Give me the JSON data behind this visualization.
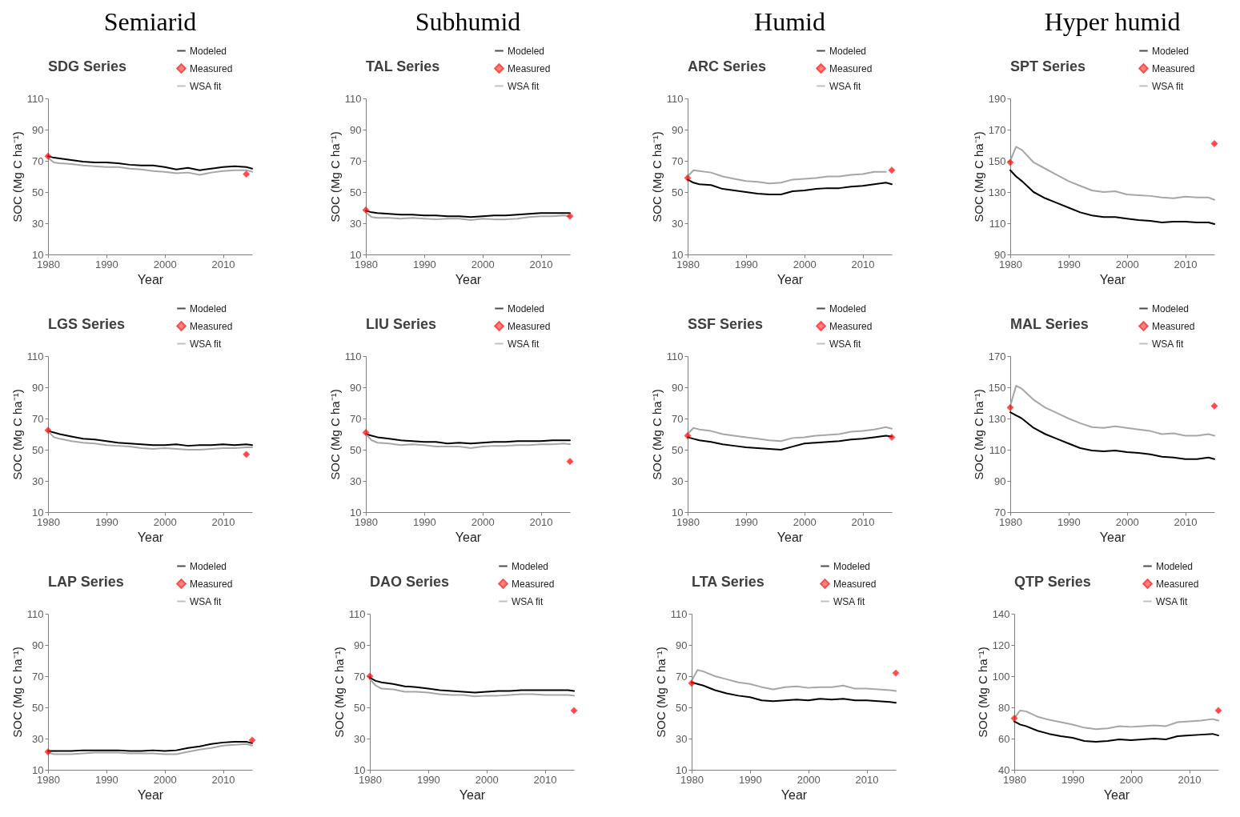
{
  "chart_data": [
    {
      "type": "line",
      "title": "SDG Series",
      "annotations": [
        "Semiarid"
      ],
      "xlabel": "Year",
      "ylabel": "SOC  (Mg C ha⁻¹)",
      "x": [
        1980,
        1981,
        1982,
        1984,
        1986,
        1988,
        1990,
        1992,
        1994,
        1996,
        1998,
        2000,
        2002,
        2004,
        2006,
        2008,
        2010,
        2012,
        2014,
        2015
      ],
      "xlim": [
        1980,
        2015
      ],
      "xticks": [
        1980,
        1990,
        2000,
        2010
      ],
      "ylim": [
        10,
        110
      ],
      "yticks": [
        10,
        30,
        50,
        70,
        90,
        110
      ],
      "grid": false,
      "legend": "top right",
      "series": [
        {
          "name": "Modeled",
          "color": "#000000",
          "values": [
            73,
            72,
            71.5,
            70.5,
            69.5,
            69,
            69,
            68.5,
            67.5,
            67,
            67,
            66,
            64.5,
            65.5,
            64,
            65,
            66,
            66.5,
            66,
            65
          ]
        },
        {
          "name": "Measured",
          "type": "scatter",
          "marker": "diamond",
          "color": "#ff0000",
          "x": [
            1980,
            2014
          ],
          "values": [
            73,
            61.5
          ]
        },
        {
          "name": "WSA fit",
          "color": "#a6a6a6",
          "values": [
            72,
            69,
            68.5,
            68,
            67,
            66.5,
            66,
            66,
            65,
            64.5,
            63.5,
            63,
            62,
            62.5,
            61,
            62.5,
            63.5,
            64,
            64,
            63
          ]
        }
      ]
    },
    {
      "type": "line",
      "title": "TAL Series",
      "annotations": [
        "Subhumid"
      ],
      "xlabel": "Year",
      "ylabel": "SOC  (Mg C ha⁻¹)",
      "x": [
        1980,
        1981,
        1982,
        1984,
        1986,
        1988,
        1990,
        1992,
        1994,
        1996,
        1998,
        2000,
        2002,
        2004,
        2006,
        2008,
        2010,
        2012,
        2014,
        2015
      ],
      "xlim": [
        1980,
        2015
      ],
      "xticks": [
        1980,
        1990,
        2000,
        2010
      ],
      "ylim": [
        10,
        110
      ],
      "yticks": [
        10,
        30,
        50,
        70,
        90,
        110
      ],
      "grid": false,
      "legend": "top right",
      "series": [
        {
          "name": "Modeled",
          "color": "#000000",
          "values": [
            38,
            37,
            36.5,
            36,
            35.5,
            35.5,
            35,
            35,
            34.5,
            34.5,
            34,
            34.5,
            35,
            35,
            35.5,
            36,
            36.5,
            36.5,
            36.5,
            36.5
          ]
        },
        {
          "name": "Measured",
          "type": "scatter",
          "marker": "diamond",
          "color": "#ff0000",
          "x": [
            1980,
            2015
          ],
          "values": [
            38.5,
            34.5
          ]
        },
        {
          "name": "WSA fit",
          "color": "#a6a6a6",
          "values": [
            37,
            34,
            33.5,
            33.5,
            33,
            33.5,
            33,
            32.5,
            33,
            33,
            32,
            33,
            32.5,
            32.5,
            33,
            34,
            34.5,
            34.5,
            35,
            34.5
          ]
        }
      ]
    },
    {
      "type": "line",
      "title": "ARC Series",
      "annotations": [
        "Humid"
      ],
      "xlabel": "Year",
      "ylabel": "SOC  (Mg C ha⁻¹)",
      "x": [
        1980,
        1981,
        1982,
        1984,
        1986,
        1988,
        1990,
        1992,
        1994,
        1996,
        1998,
        2000,
        2002,
        2004,
        2006,
        2008,
        2010,
        2012,
        2014,
        2015
      ],
      "xlim": [
        1980,
        2015
      ],
      "xticks": [
        1980,
        1990,
        2000,
        2010
      ],
      "ylim": [
        10,
        110
      ],
      "yticks": [
        10,
        30,
        50,
        70,
        90,
        110
      ],
      "grid": false,
      "legend": "top right",
      "series": [
        {
          "name": "Modeled",
          "color": "#000000",
          "values": [
            58,
            56,
            55,
            54.5,
            52,
            51,
            50,
            49,
            48.5,
            48.5,
            50.5,
            51,
            52,
            52.5,
            52.5,
            53.5,
            54,
            55,
            56,
            55
          ]
        },
        {
          "name": "Measured",
          "type": "scatter",
          "marker": "diamond",
          "color": "#ff0000",
          "x": [
            1980,
            2015
          ],
          "values": [
            59,
            64
          ]
        },
        {
          "name": "WSA fit",
          "color": "#a6a6a6",
          "values": [
            60,
            64,
            63.5,
            62.5,
            60,
            58.5,
            57,
            56.5,
            55.5,
            56,
            58,
            58.5,
            59,
            60,
            60,
            61,
            61.5,
            63,
            63,
            null
          ]
        }
      ]
    },
    {
      "type": "line",
      "title": "SPT Series",
      "annotations": [
        "Hyper humid"
      ],
      "xlabel": "Year",
      "ylabel": "SOC  (Mg C ha⁻¹)",
      "x": [
        1980,
        1981,
        1982,
        1984,
        1986,
        1988,
        1990,
        1992,
        1994,
        1996,
        1998,
        2000,
        2002,
        2004,
        2006,
        2008,
        2010,
        2012,
        2014,
        2015
      ],
      "xlim": [
        1980,
        2015
      ],
      "xticks": [
        1980,
        1990,
        2000,
        2010
      ],
      "ylim": [
        90,
        190
      ],
      "yticks": [
        90,
        110,
        130,
        150,
        170,
        190
      ],
      "grid": false,
      "legend": "top right",
      "series": [
        {
          "name": "Modeled",
          "color": "#000000",
          "values": [
            144,
            140,
            137,
            130,
            126,
            123,
            120,
            117,
            115,
            114,
            114,
            113,
            112,
            111.5,
            110.5,
            111,
            111,
            110.5,
            110.5,
            109.5
          ]
        },
        {
          "name": "Measured",
          "type": "scatter",
          "marker": "diamond",
          "color": "#ff0000",
          "x": [
            1980,
            2015
          ],
          "values": [
            149,
            161
          ]
        },
        {
          "name": "WSA fit",
          "color": "#a6a6a6",
          "values": [
            150,
            159,
            157,
            149,
            145,
            141,
            137,
            134,
            131,
            130,
            130.5,
            128.5,
            128,
            127.5,
            126.5,
            126,
            127,
            126.5,
            126.5,
            125
          ]
        }
      ]
    },
    {
      "type": "line",
      "title": "LGS Series",
      "xlabel": "Year",
      "ylabel": "SOC  (Mg C ha⁻¹)",
      "x": [
        1980,
        1981,
        1982,
        1984,
        1986,
        1988,
        1990,
        1992,
        1994,
        1996,
        1998,
        2000,
        2002,
        2004,
        2006,
        2008,
        2010,
        2012,
        2014,
        2015
      ],
      "xlim": [
        1980,
        2015
      ],
      "xticks": [
        1980,
        1990,
        2000,
        2010
      ],
      "ylim": [
        10,
        110
      ],
      "yticks": [
        10,
        30,
        50,
        70,
        90,
        110
      ],
      "grid": false,
      "legend": "top right",
      "series": [
        {
          "name": "Modeled",
          "color": "#000000",
          "values": [
            62,
            61,
            60,
            58.5,
            57,
            56.5,
            55.5,
            54.5,
            54,
            53.5,
            53,
            53,
            53.5,
            52.5,
            53,
            53,
            53.5,
            53,
            53.5,
            53
          ]
        },
        {
          "name": "Measured",
          "type": "scatter",
          "marker": "diamond",
          "color": "#ff0000",
          "x": [
            1980,
            2014
          ],
          "values": [
            62.5,
            47
          ]
        },
        {
          "name": "WSA fit",
          "color": "#a6a6a6",
          "values": [
            62,
            58,
            57,
            55.5,
            54.5,
            54,
            53,
            52.5,
            52,
            51,
            50.5,
            51,
            50.5,
            50,
            50,
            50.5,
            51,
            51,
            51.5,
            51.5
          ]
        }
      ]
    },
    {
      "type": "line",
      "title": "LIU Series",
      "xlabel": "Year",
      "ylabel": "SOC  (Mg C ha⁻¹)",
      "x": [
        1980,
        1981,
        1982,
        1984,
        1986,
        1988,
        1990,
        1992,
        1994,
        1996,
        1998,
        2000,
        2002,
        2004,
        2006,
        2008,
        2010,
        2012,
        2014,
        2015
      ],
      "xlim": [
        1980,
        2015
      ],
      "xticks": [
        1980,
        1990,
        2000,
        2010
      ],
      "ylim": [
        10,
        110
      ],
      "yticks": [
        10,
        30,
        50,
        70,
        90,
        110
      ],
      "grid": false,
      "legend": "top right",
      "series": [
        {
          "name": "Modeled",
          "color": "#000000",
          "values": [
            60,
            59,
            58,
            57,
            56,
            55.5,
            55,
            55,
            54,
            54.5,
            54,
            54.5,
            55,
            55,
            55.5,
            55.5,
            55.5,
            56,
            56,
            56
          ]
        },
        {
          "name": "Measured",
          "type": "scatter",
          "marker": "diamond",
          "color": "#ff0000",
          "x": [
            1980,
            2015
          ],
          "values": [
            61,
            42.5
          ]
        },
        {
          "name": "WSA fit",
          "color": "#a6a6a6",
          "values": [
            60,
            56,
            54.5,
            54,
            53,
            53.5,
            53,
            52,
            52,
            52,
            51,
            52,
            52.5,
            52.5,
            53,
            53,
            53.5,
            53.5,
            54,
            53.5
          ]
        }
      ]
    },
    {
      "type": "line",
      "title": "SSF Series",
      "xlabel": "Year",
      "ylabel": "SOC  (Mg C ha⁻¹)",
      "x": [
        1980,
        1981,
        1982,
        1984,
        1986,
        1988,
        1990,
        1992,
        1994,
        1996,
        1998,
        2000,
        2002,
        2004,
        2006,
        2008,
        2010,
        2012,
        2014,
        2015
      ],
      "xlim": [
        1980,
        2015
      ],
      "xticks": [
        1980,
        1990,
        2000,
        2010
      ],
      "ylim": [
        10,
        110
      ],
      "yticks": [
        10,
        30,
        50,
        70,
        90,
        110
      ],
      "grid": false,
      "legend": "top right",
      "series": [
        {
          "name": "Modeled",
          "color": "#000000",
          "values": [
            58,
            57,
            56,
            55,
            53.5,
            52.5,
            51.5,
            51,
            50.5,
            50,
            52,
            54,
            54.5,
            55,
            55.5,
            56.5,
            57,
            58,
            59,
            58.5
          ]
        },
        {
          "name": "Measured",
          "type": "scatter",
          "marker": "diamond",
          "color": "#ff0000",
          "x": [
            1980,
            2015
          ],
          "values": [
            59,
            58
          ]
        },
        {
          "name": "WSA fit",
          "color": "#a6a6a6",
          "values": [
            60,
            64,
            63,
            62,
            60,
            59,
            58,
            57,
            56,
            55.5,
            57.5,
            58,
            59,
            59.5,
            60,
            61.5,
            62,
            63,
            64.5,
            63.5
          ]
        }
      ]
    },
    {
      "type": "line",
      "title": "MAL Series",
      "xlabel": "Year",
      "ylabel": "SOC  (Mg C ha⁻¹)",
      "x": [
        1980,
        1981,
        1982,
        1984,
        1986,
        1988,
        1990,
        1992,
        1994,
        1996,
        1998,
        2000,
        2002,
        2004,
        2006,
        2008,
        2010,
        2012,
        2014,
        2015
      ],
      "xlim": [
        1980,
        2015
      ],
      "xticks": [
        1980,
        1990,
        2000,
        2010
      ],
      "ylim": [
        70,
        170
      ],
      "yticks": [
        70,
        90,
        110,
        130,
        150,
        170
      ],
      "grid": false,
      "legend": "top right",
      "series": [
        {
          "name": "Modeled",
          "color": "#000000",
          "values": [
            134,
            132,
            130,
            124,
            120,
            117,
            114,
            111,
            109.5,
            109,
            109.5,
            108.5,
            108,
            107,
            105.5,
            105,
            104,
            104,
            105,
            104
          ]
        },
        {
          "name": "Measured",
          "type": "scatter",
          "marker": "diamond",
          "color": "#ff0000",
          "x": [
            1980,
            2015
          ],
          "values": [
            137,
            138
          ]
        },
        {
          "name": "WSA fit",
          "color": "#a6a6a6",
          "values": [
            138,
            151,
            149,
            142,
            137,
            133.5,
            130,
            127,
            124.5,
            124,
            125,
            124,
            123,
            122,
            120,
            120.5,
            119,
            119,
            120,
            119
          ]
        }
      ]
    },
    {
      "type": "line",
      "title": "LAP Series",
      "xlabel": "Year",
      "ylabel": "SOC  (Mg C ha⁻¹)",
      "x": [
        1980,
        1981,
        1982,
        1984,
        1986,
        1988,
        1990,
        1992,
        1994,
        1996,
        1998,
        2000,
        2002,
        2004,
        2006,
        2008,
        2010,
        2012,
        2014,
        2015
      ],
      "xlim": [
        1980,
        2015
      ],
      "xticks": [
        1980,
        1990,
        2000,
        2010
      ],
      "ylim": [
        10,
        110
      ],
      "yticks": [
        10,
        30,
        50,
        70,
        90,
        110
      ],
      "grid": false,
      "legend": "top right",
      "series": [
        {
          "name": "Modeled",
          "color": "#000000",
          "values": [
            22,
            22,
            22,
            22,
            22.5,
            22.5,
            22.5,
            22.5,
            22,
            22,
            22.5,
            22,
            22.5,
            24,
            25,
            26.5,
            27.5,
            28,
            28,
            27
          ]
        },
        {
          "name": "Measured",
          "type": "scatter",
          "marker": "diamond",
          "color": "#ff0000",
          "x": [
            1980,
            2015
          ],
          "values": [
            21.5,
            29
          ]
        },
        {
          "name": "WSA fit",
          "color": "#a6a6a6",
          "values": [
            21,
            20,
            20,
            20,
            20.5,
            21,
            21,
            21,
            20.5,
            20.5,
            20.5,
            20,
            20,
            21.5,
            23,
            24,
            25.5,
            26,
            26.5,
            25.5
          ]
        }
      ]
    },
    {
      "type": "line",
      "title": "DAO Series",
      "xlabel": "Year",
      "ylabel": "SOC  (Mg C ha⁻¹)",
      "x": [
        1980,
        1981,
        1982,
        1984,
        1986,
        1988,
        1990,
        1992,
        1994,
        1996,
        1998,
        2000,
        2002,
        2004,
        2006,
        2008,
        2010,
        2012,
        2014,
        2015
      ],
      "xlim": [
        1980,
        2015
      ],
      "xticks": [
        1980,
        1990,
        2000,
        2010
      ],
      "ylim": [
        10,
        110
      ],
      "yticks": [
        10,
        30,
        50,
        70,
        90,
        110
      ],
      "grid": false,
      "legend": "top right",
      "series": [
        {
          "name": "Modeled",
          "color": "#000000",
          "values": [
            69,
            67,
            66,
            65,
            63.5,
            63,
            62,
            61,
            60.5,
            60,
            59.5,
            60,
            60.5,
            60.5,
            61,
            61,
            61,
            61,
            61,
            60.5
          ]
        },
        {
          "name": "Measured",
          "type": "scatter",
          "marker": "diamond",
          "color": "#ff0000",
          "x": [
            1980,
            2015
          ],
          "values": [
            70,
            48
          ]
        },
        {
          "name": "WSA fit",
          "color": "#a6a6a6",
          "values": [
            68,
            64,
            62,
            61.5,
            60,
            60,
            59.5,
            58.5,
            58,
            58,
            57,
            57.5,
            57.5,
            58,
            58.5,
            58.5,
            58,
            58,
            58,
            57.5
          ]
        }
      ]
    },
    {
      "type": "line",
      "title": "LTA Series",
      "xlabel": "Year",
      "ylabel": "SOC  (Mg C ha⁻¹)",
      "x": [
        1980,
        1981,
        1982,
        1984,
        1986,
        1988,
        1990,
        1992,
        1994,
        1996,
        1998,
        2000,
        2002,
        2004,
        2006,
        2008,
        2010,
        2012,
        2014,
        2015
      ],
      "xlim": [
        1980,
        2015
      ],
      "xticks": [
        1980,
        1990,
        2000,
        2010
      ],
      "ylim": [
        10,
        110
      ],
      "yticks": [
        10,
        30,
        50,
        70,
        90,
        110
      ],
      "grid": false,
      "legend": "top right",
      "series": [
        {
          "name": "Modeled",
          "color": "#000000",
          "values": [
            66,
            65,
            64,
            61,
            59,
            57.5,
            56.5,
            54.5,
            54,
            54.5,
            55,
            54.5,
            55.5,
            55,
            55.5,
            54.5,
            54.5,
            54,
            53.5,
            53
          ]
        },
        {
          "name": "Measured",
          "type": "scatter",
          "marker": "diamond",
          "color": "#ff0000",
          "x": [
            1980,
            2015
          ],
          "values": [
            65.5,
            72
          ]
        },
        {
          "name": "WSA fit",
          "color": "#a6a6a6",
          "values": [
            67,
            74,
            73,
            70,
            68,
            66,
            65,
            63,
            61.5,
            63,
            63.5,
            62.5,
            63,
            63,
            64,
            62,
            62,
            61.5,
            61,
            60.5
          ]
        }
      ]
    },
    {
      "type": "line",
      "title": "QTP Series",
      "xlabel": "Year",
      "ylabel": "SOC  (Mg C ha⁻¹)",
      "x": [
        1980,
        1981,
        1982,
        1984,
        1986,
        1988,
        1990,
        1992,
        1994,
        1996,
        1998,
        2000,
        2002,
        2004,
        2006,
        2008,
        2010,
        2012,
        2014,
        2015
      ],
      "xlim": [
        1980,
        2015
      ],
      "xticks": [
        1980,
        1990,
        2000,
        2010
      ],
      "ylim": [
        40,
        140
      ],
      "yticks": [
        40,
        60,
        80,
        100,
        120,
        140
      ],
      "grid": false,
      "legend": "top right",
      "series": [
        {
          "name": "Modeled",
          "color": "#000000",
          "values": [
            71,
            69,
            68,
            65,
            63,
            61.5,
            60.5,
            58.5,
            58,
            58.5,
            59.5,
            59,
            59.5,
            60,
            59.5,
            61.5,
            62,
            62.5,
            63,
            62
          ]
        },
        {
          "name": "Measured",
          "type": "scatter",
          "marker": "diamond",
          "color": "#ff0000",
          "x": [
            1980,
            2015
          ],
          "values": [
            73,
            78
          ]
        },
        {
          "name": "WSA fit",
          "color": "#a6a6a6",
          "values": [
            73,
            78,
            77.5,
            74,
            72,
            70.5,
            69,
            67,
            66,
            66.5,
            68,
            67.5,
            68,
            68.5,
            68,
            70.5,
            71,
            71.5,
            72.5,
            71.5
          ]
        }
      ]
    }
  ]
}
